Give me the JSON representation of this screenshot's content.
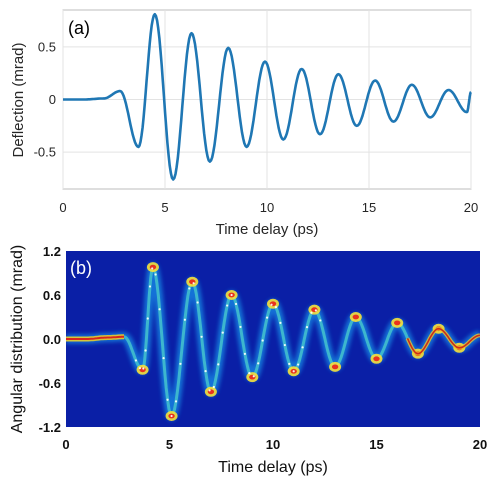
{
  "chart_data": [
    {
      "type": "line",
      "panel_label": "(a)",
      "xlabel": "Time delay (ps)",
      "ylabel": "Deflection (mrad)",
      "xlim": [
        0,
        20
      ],
      "ylim": [
        -0.85,
        0.85
      ],
      "xticks": [
        "0",
        "5",
        "10",
        "15",
        "20"
      ],
      "yticks": [
        "0.5",
        "0",
        "-0.5"
      ],
      "grid": true,
      "line_color": "#1f77b4",
      "series": [
        {
          "x": [
            0,
            1.0,
            2.0,
            2.8,
            3.7,
            4.5,
            5.4,
            6.3,
            7.2,
            8.1,
            9.0,
            9.9,
            10.8,
            11.7,
            12.6,
            13.5,
            14.4,
            15.3,
            16.2,
            17.1,
            18.0,
            18.9,
            19.8,
            20
          ],
          "y": [
            0,
            0,
            0.01,
            0.08,
            -0.45,
            0.81,
            -0.76,
            0.63,
            -0.59,
            0.49,
            -0.45,
            0.36,
            -0.38,
            0.29,
            -0.33,
            0.24,
            -0.25,
            0.18,
            -0.21,
            0.14,
            -0.17,
            0.09,
            -0.12,
            0.07
          ]
        }
      ]
    },
    {
      "type": "heatmap",
      "panel_label": "(b)",
      "xlabel": "Time delay (ps)",
      "ylabel": "Angular distribution (mrad)",
      "xlim": [
        0,
        20
      ],
      "ylim": [
        -1.2,
        1.2
      ],
      "xticks": [
        "0",
        "5",
        "10",
        "15",
        "20"
      ],
      "yticks": [
        "1.2",
        "0.6",
        "0.0",
        "-0.6",
        "-1.2"
      ],
      "colormap": "jet",
      "background_color": "#0a1fa6",
      "ridge": {
        "x": [
          0,
          1.0,
          2.0,
          2.8,
          3.7,
          4.2,
          5.1,
          6.1,
          7.0,
          8.0,
          9.0,
          10.0,
          11.0,
          12.0,
          13.0,
          14.0,
          15.0,
          16.0,
          17.0,
          18.0,
          19.0,
          20
        ],
        "y": [
          0.0,
          0.0,
          0.02,
          0.03,
          -0.42,
          0.98,
          -1.05,
          0.78,
          -0.72,
          0.6,
          -0.52,
          0.48,
          -0.44,
          0.4,
          -0.38,
          0.3,
          -0.27,
          0.22,
          -0.2,
          0.14,
          -0.12,
          0.05
        ]
      }
    }
  ]
}
